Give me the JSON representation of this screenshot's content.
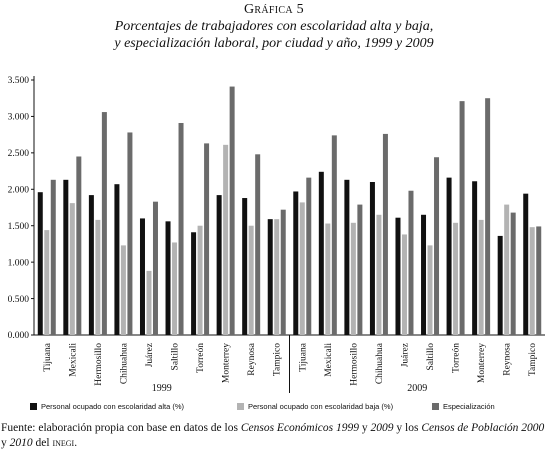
{
  "figure": {
    "label": "Gráfica 5",
    "title_line1": "Porcentajes de trabajadores con escolaridad alta y baja,",
    "title_line2": "y especialización laboral, por ciudad y año, 1999 y 2009"
  },
  "chart_data": {
    "type": "bar",
    "groups": [
      {
        "year": "1999",
        "categories": [
          "Tijuana",
          "Mexicali",
          "Hermosillo",
          "Chihuahua",
          "Juárez",
          "Saltillo",
          "Torreón",
          "Monterrey",
          "Reynosa",
          "Tampico"
        ]
      },
      {
        "year": "2009",
        "categories": [
          "Tijuana",
          "Mexicali",
          "Hermosillo",
          "Chihuahua",
          "Juárez",
          "Saltillo",
          "Torreón",
          "Monterrey",
          "Reynosa",
          "Tampico"
        ]
      }
    ],
    "series": [
      {
        "name": "Personal ocupado con escolaridad alta (%)",
        "color": "#111111",
        "values": [
          1.96,
          2.13,
          1.92,
          2.07,
          1.6,
          1.56,
          1.41,
          1.92,
          1.88,
          1.59,
          1.97,
          2.24,
          2.13,
          2.1,
          1.61,
          1.65,
          2.16,
          2.11,
          1.36,
          1.94
        ]
      },
      {
        "name": "Personal ocupado con escolaridad baja (%)",
        "color": "#b3b3b3",
        "values": [
          1.44,
          1.81,
          1.58,
          1.23,
          0.88,
          1.27,
          1.5,
          2.61,
          1.5,
          1.59,
          1.82,
          1.53,
          1.54,
          1.65,
          1.38,
          1.23,
          1.54,
          1.58,
          1.79,
          1.48
        ]
      },
      {
        "name": "Especialización",
        "color": "#6b6b6b",
        "values": [
          2.13,
          2.45,
          3.06,
          2.78,
          1.83,
          2.91,
          2.63,
          3.41,
          2.48,
          1.72,
          2.16,
          2.74,
          1.79,
          2.76,
          1.98,
          2.44,
          3.21,
          3.25,
          1.68,
          1.49
        ]
      }
    ],
    "y_ticks": [
      "0.000",
      "0.500",
      "1.000",
      "1.500",
      "2.000",
      "2.500",
      "3.000",
      "3.500"
    ],
    "ylim": [
      0,
      3.5
    ],
    "grid": false,
    "legend_position": "bottom"
  },
  "source": {
    "p1": "Fuente: elaboración propia con base en datos de los ",
    "it1": "Censos Económicos 1999",
    "p2": " y ",
    "it2": "2009",
    "p3": " y los ",
    "it3": "Censos de Población 2000",
    "p4": " y ",
    "it4": "2010",
    "p5": " del ",
    "sc1": "inegi",
    "p6": "."
  }
}
